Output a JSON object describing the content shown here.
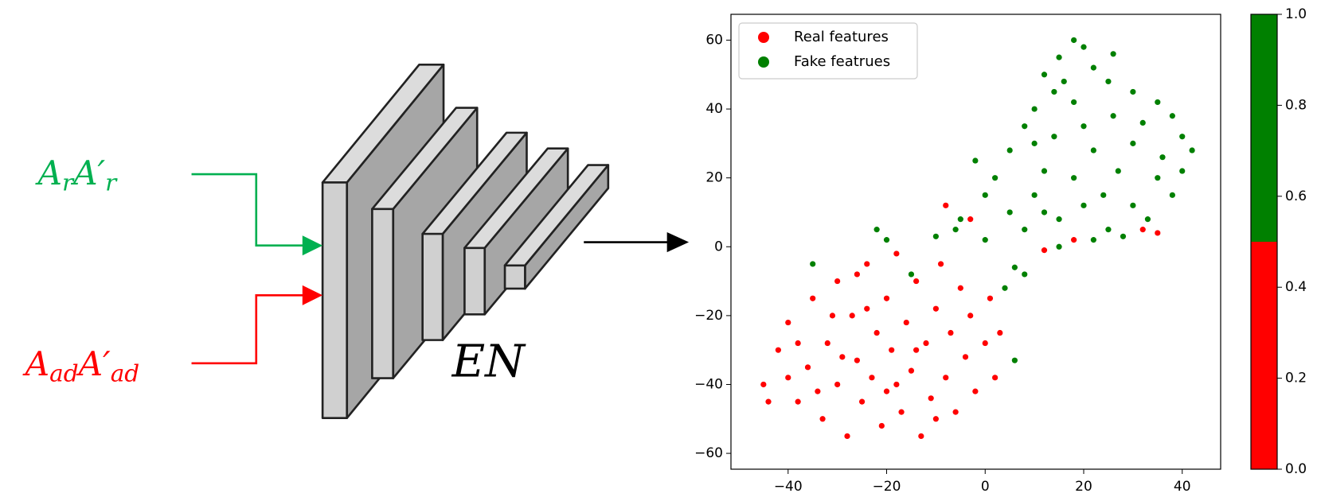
{
  "diagram": {
    "inputs": [
      {
        "color": "#00b050",
        "parts": [
          {
            "base": "A",
            "sub": "r"
          },
          {
            "base": "A′",
            "sub": "r"
          }
        ]
      },
      {
        "color": "#ff0000",
        "parts": [
          {
            "base": "A",
            "sub": "ad"
          },
          {
            "base": "A′",
            "sub": "ad"
          }
        ]
      }
    ],
    "encoder_label": "EN"
  },
  "chart_data": {
    "type": "scatter",
    "xlim": [
      -51.6,
      47.8
    ],
    "ylim": [
      -64.6,
      67.5
    ],
    "xticks": [
      {
        "value": -40,
        "label": "−40"
      },
      {
        "value": -20,
        "label": "−20"
      },
      0,
      20,
      40
    ],
    "yticks": [
      {
        "value": -60,
        "label": "−60"
      },
      {
        "value": -40,
        "label": "−40"
      },
      {
        "value": -20,
        "label": "−20"
      },
      0,
      20,
      40,
      60
    ],
    "legend": "upper left",
    "series": [
      {
        "name": "Real features",
        "color": "#ff0000",
        "x": [
          -45,
          -42,
          -40,
          -38,
          -36,
          -35,
          -33,
          -32,
          -30,
          -30,
          -28,
          -27,
          -26,
          -25,
          -24,
          -23,
          -22,
          -21,
          -20,
          -20,
          -19,
          -18,
          -17,
          -16,
          -15,
          -14,
          -13,
          -12,
          -11,
          -10,
          -9,
          -8,
          -7,
          -6,
          -5,
          -4,
          -3,
          -2,
          0,
          1,
          2,
          3,
          -38,
          -34,
          -29,
          -24,
          -18,
          -14,
          -10,
          -26,
          -40,
          -44,
          -31,
          12,
          18,
          32,
          35,
          -8,
          -3
        ],
        "values": [
          -40,
          -30,
          -22,
          -45,
          -35,
          -15,
          -50,
          -28,
          -40,
          -10,
          -55,
          -20,
          -33,
          -45,
          -5,
          -38,
          -25,
          -52,
          -15,
          -42,
          -30,
          -2,
          -48,
          -22,
          -36,
          -10,
          -55,
          -28,
          -44,
          -18,
          -5,
          -38,
          -25,
          -48,
          -12,
          -32,
          -20,
          -42,
          -28,
          -15,
          -38,
          -25,
          -28,
          -42,
          -32,
          -18,
          -40,
          -30,
          -50,
          -8,
          -38,
          -45,
          -20,
          -1,
          2,
          5,
          4,
          12,
          8
        ]
      },
      {
        "name": "Fake featrues",
        "color": "#008000",
        "x": [
          18,
          15,
          20,
          12,
          22,
          25,
          14,
          30,
          10,
          18,
          35,
          38,
          26,
          20,
          8,
          14,
          30,
          40,
          42,
          22,
          5,
          -2,
          2,
          12,
          18,
          27,
          35,
          38,
          30,
          20,
          10,
          0,
          5,
          15,
          25,
          33,
          -5,
          -10,
          -6,
          0,
          8,
          15,
          22,
          28,
          6,
          8,
          4,
          6,
          -22,
          -20,
          -35,
          -15,
          10,
          24,
          36,
          40,
          16,
          26,
          32,
          12
        ],
        "values": [
          60,
          55,
          58,
          50,
          52,
          48,
          45,
          45,
          40,
          42,
          42,
          38,
          38,
          35,
          35,
          32,
          30,
          32,
          28,
          28,
          28,
          25,
          20,
          22,
          20,
          22,
          20,
          15,
          12,
          12,
          15,
          15,
          10,
          8,
          5,
          8,
          8,
          3,
          5,
          2,
          5,
          0,
          2,
          3,
          -6,
          -8,
          -12,
          -33,
          5,
          2,
          -5,
          -8,
          30,
          15,
          26,
          22,
          48,
          56,
          36,
          10
        ]
      }
    ],
    "colorbar": {
      "lim": [
        0,
        1
      ],
      "bounds": [
        0,
        0.5,
        1
      ],
      "colors": [
        "#ff0000",
        "#008000"
      ],
      "ticks": [
        {
          "value": 0,
          "label": "0.0"
        },
        {
          "value": 0.2,
          "label": "0.2"
        },
        {
          "value": 0.4,
          "label": "0.4"
        },
        {
          "value": 0.6,
          "label": "0.6"
        },
        {
          "value": 0.8,
          "label": "0.8"
        },
        {
          "value": 1,
          "label": "1.0"
        }
      ]
    }
  }
}
